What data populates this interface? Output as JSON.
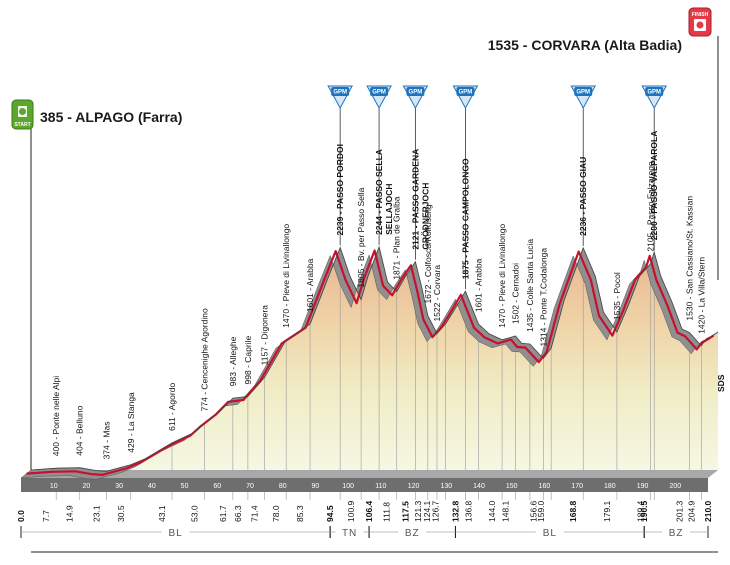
{
  "start": {
    "alt": "385",
    "name": "ALPAGO (Farra)",
    "label": "385 - ALPAGO (Farra)",
    "icon_text": "START"
  },
  "finish": {
    "alt": "1535",
    "name": "CORVARA (Alta Badia)",
    "label": "1535 - CORVARA (Alta Badia)",
    "icon_text": "FINISH"
  },
  "sds": "SDS",
  "colors": {
    "line": "#c8102e",
    "cap": "#999999",
    "ground": "#6e6e6e",
    "gpm": "#1e73be",
    "start_icon": "#5aa72c",
    "finish_icon": "#e63946"
  },
  "gpm_label": "GPM",
  "chart_data": {
    "type": "area",
    "title": "",
    "xlabel": "",
    "ylabel": "",
    "xlim": [
      0,
      210
    ],
    "x_ticks": [
      10,
      20,
      30,
      40,
      50,
      60,
      70,
      80,
      90,
      100,
      110,
      120,
      130,
      140,
      150,
      160,
      170,
      180,
      190,
      200
    ],
    "profile": [
      [
        0,
        385
      ],
      [
        7.7,
        400
      ],
      [
        14.9,
        404
      ],
      [
        20,
        380
      ],
      [
        23.1,
        374
      ],
      [
        30.5,
        429
      ],
      [
        35,
        480
      ],
      [
        43.1,
        611
      ],
      [
        50,
        700
      ],
      [
        53,
        774
      ],
      [
        58,
        880
      ],
      [
        61.7,
        983
      ],
      [
        66.3,
        998
      ],
      [
        71.4,
        1157
      ],
      [
        78,
        1470
      ],
      [
        85.3,
        1601
      ],
      [
        91,
        2000
      ],
      [
        94.5,
        2239
      ],
      [
        97.5,
        2000
      ],
      [
        100.9,
        1805
      ],
      [
        103,
        2000
      ],
      [
        106.4,
        2244
      ],
      [
        109,
        1950
      ],
      [
        111.8,
        1871
      ],
      [
        114.5,
        2000
      ],
      [
        117.5,
        2121
      ],
      [
        119.5,
        1900
      ],
      [
        121.3,
        1672
      ],
      [
        124.1,
        1522
      ],
      [
        126.7,
        1601
      ],
      [
        129,
        1700
      ],
      [
        132.8,
        1875
      ],
      [
        136.8,
        1601
      ],
      [
        140,
        1520
      ],
      [
        144,
        1470
      ],
      [
        148.1,
        1502
      ],
      [
        150,
        1440
      ],
      [
        152.5,
        1435
      ],
      [
        156.6,
        1314
      ],
      [
        159,
        1400
      ],
      [
        163,
        1800
      ],
      [
        168.8,
        2236
      ],
      [
        172.5,
        2000
      ],
      [
        175,
        1700
      ],
      [
        179.1,
        1535
      ],
      [
        182.5,
        1750
      ],
      [
        186,
        2000
      ],
      [
        189.4,
        2105
      ],
      [
        190.5,
        2200
      ],
      [
        192.5,
        2000
      ],
      [
        196,
        1780
      ],
      [
        199,
        1560
      ],
      [
        201.3,
        1530
      ],
      [
        204.9,
        1420
      ],
      [
        206.5,
        1480
      ],
      [
        208,
        1500
      ],
      [
        210,
        1535
      ]
    ],
    "points": [
      {
        "km": "0.0",
        "x": 0,
        "label": "",
        "bold": true
      },
      {
        "km": "7.7",
        "x": 7.7,
        "label": "400 - Ponte nelle Alpi"
      },
      {
        "km": "14.9",
        "x": 14.9,
        "label": "404 - Belluno"
      },
      {
        "km": "23.1",
        "x": 23.1,
        "label": "374 - Mas"
      },
      {
        "km": "30.5",
        "x": 30.5,
        "label": "429 - La Stanga"
      },
      {
        "km": "43.1",
        "x": 43.1,
        "label": "611 - Agordo"
      },
      {
        "km": "53.0",
        "x": 53.0,
        "label": "774 - Cencenighe Agordino"
      },
      {
        "km": "61.7",
        "x": 61.7,
        "label": "983 - Alleghe"
      },
      {
        "km": "66.3",
        "x": 66.3,
        "label": "998 - Caprile"
      },
      {
        "km": "71.4",
        "x": 71.4,
        "label": "1157 - Digonera"
      },
      {
        "km": "78.0",
        "x": 78.0,
        "label": "1470 - Pieve di Livinallongo"
      },
      {
        "km": "85.3",
        "x": 85.3,
        "label": "1601 - Arabba"
      },
      {
        "km": "94.5",
        "x": 94.5,
        "label": "2239 - PASSO PORDOI",
        "bold": true,
        "gpm": true
      },
      {
        "km": "100.9",
        "x": 100.9,
        "label": "1805 - Bv. per Passo Sella"
      },
      {
        "km": "106.4",
        "x": 106.4,
        "label": "2244 - PASSO SELLA",
        "label2": "SELLAJOCH",
        "bold": true,
        "gpm": true
      },
      {
        "km": "111.8",
        "x": 111.8,
        "label": "1871 - Plan de Gralba"
      },
      {
        "km": "117.5",
        "x": 117.5,
        "label": "2121 - PASSO GARDENA",
        "label2": "GRÖDNERJOCH",
        "bold": true,
        "gpm": true
      },
      {
        "km": "121.3",
        "x": 121.3,
        "label": "1672 - Colfosco/Kolfuschg"
      },
      {
        "km": "124.1",
        "x": 124.1,
        "label": "1522 - Corvara"
      },
      {
        "km": "126.7",
        "x": 126.7,
        "label": ""
      },
      {
        "km": "132.8",
        "x": 132.8,
        "label": "1875 - PASSO CAMPOLONGO",
        "bold": true,
        "gpm": true
      },
      {
        "km": "136.8",
        "x": 136.8,
        "label": "1601 - Arabba"
      },
      {
        "km": "144.0",
        "x": 144.0,
        "label": "1470 - Pieve di Livinallongo"
      },
      {
        "km": "148.1",
        "x": 148.1,
        "label": "1502 - Cernadoi"
      },
      {
        "km": "",
        "x": 152.5,
        "label": "1435 - Colle Santa Lucia"
      },
      {
        "km": "156.6",
        "x": 156.6,
        "label": "1314 - Ponte T.Codalonga"
      },
      {
        "km": "159.0",
        "x": 159.0,
        "label": ""
      },
      {
        "km": "168.8",
        "x": 168.8,
        "label": "2236 - PASSO GIAU",
        "bold": true,
        "gpm": true
      },
      {
        "km": "179.1",
        "x": 179.1,
        "label": "1535 - Pocol"
      },
      {
        "km": "189.4",
        "x": 189.4,
        "label": "2105 - Passo Falzarego"
      },
      {
        "km": "190.5",
        "x": 190.5,
        "label": "2200 - PASSO VALPAROLA",
        "bold": true,
        "gpm": true
      },
      {
        "km": "201.3",
        "x": 201.3,
        "label": "1530 - San Cassiano/St. Kassian"
      },
      {
        "km": "204.9",
        "x": 204.9,
        "label": "1420 - La Villa/Stern"
      },
      {
        "km": "210.0",
        "x": 210.0,
        "label": "",
        "bold": true
      }
    ],
    "regions": [
      {
        "name": "BL",
        "from": 0,
        "to": 94.5
      },
      {
        "name": "TN",
        "from": 94.5,
        "to": 106.4
      },
      {
        "name": "BZ",
        "from": 106.4,
        "to": 132.8
      },
      {
        "name": "BL",
        "from": 132.8,
        "to": 190.5
      },
      {
        "name": "BZ",
        "from": 190.5,
        "to": 210
      }
    ]
  }
}
